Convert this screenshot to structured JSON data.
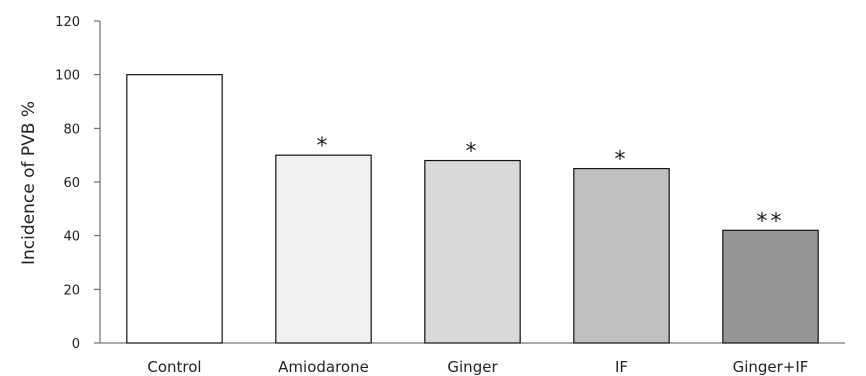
{
  "chart_data": {
    "type": "bar",
    "title": "",
    "xlabel": "",
    "ylabel": "Incidence of PVB %",
    "ylim": [
      0,
      120
    ],
    "yticks": [
      0,
      20,
      40,
      60,
      80,
      100,
      120
    ],
    "grid": false,
    "categories": [
      "Control",
      "Amiodarone",
      "Ginger",
      "IF",
      "Ginger+IF"
    ],
    "values": [
      100,
      70,
      68,
      65,
      42
    ],
    "annotations": [
      "",
      "*",
      "*",
      "*",
      "**"
    ],
    "colors": [
      "#ffffff",
      "#f0f0f0",
      "#d9d9d9",
      "#bfbfbf",
      "#969696"
    ]
  }
}
